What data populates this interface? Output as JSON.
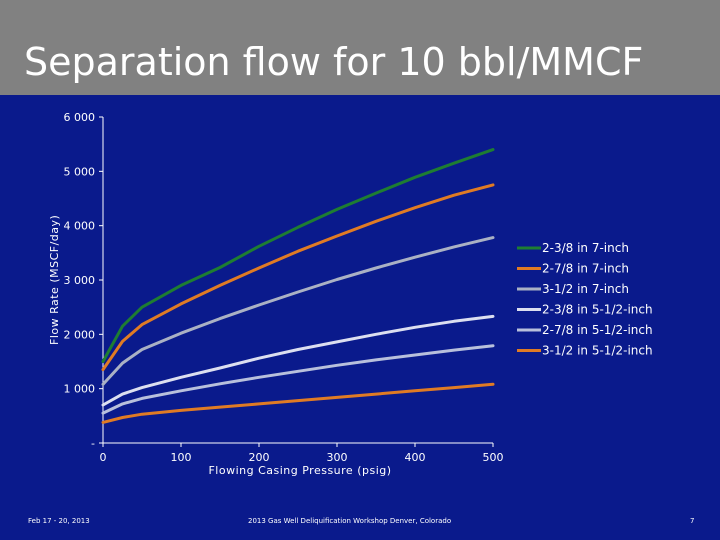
{
  "slide": {
    "title": "Separation flow for 10 bbl/MMCF",
    "footer_left": "Feb 17 - 20, 2013",
    "footer_center": "2013 Gas Well Deliquification Workshop Denver, Colorado",
    "footer_right": "7"
  },
  "colors": {
    "background": "#0a1a8c",
    "title_band": "#818181"
  },
  "chart_data": {
    "type": "line",
    "title": "",
    "xlabel": "Flowing Casing Pressure (psig)",
    "ylabel": "Flow Rate (MSCF/day)",
    "xlim": [
      0,
      500
    ],
    "ylim": [
      0,
      6000
    ],
    "x_ticks": [
      "0",
      "100",
      "200",
      "300",
      "400",
      "500"
    ],
    "y_ticks": [
      "-",
      "1 000",
      "2 000",
      "3 000",
      "4 000",
      "5 000",
      "6 000"
    ],
    "x": [
      0,
      25,
      50,
      100,
      150,
      200,
      250,
      300,
      350,
      400,
      450,
      500
    ],
    "legend_position": "right",
    "series": [
      {
        "name": "2-3/8 in 7-inch",
        "color": "#1e7d32",
        "values": [
          1500,
          2150,
          2500,
          2900,
          3230,
          3620,
          3970,
          4300,
          4600,
          4890,
          5150,
          5400
        ]
      },
      {
        "name": "2-7/8 in 7-inch",
        "color": "#e07b24",
        "values": [
          1350,
          1870,
          2180,
          2560,
          2900,
          3220,
          3530,
          3810,
          4080,
          4330,
          4560,
          4750
        ]
      },
      {
        "name": "3-1/2 in 7-inch",
        "color": "#aab1c4",
        "values": [
          1080,
          1470,
          1720,
          2020,
          2290,
          2540,
          2780,
          3010,
          3220,
          3420,
          3610,
          3780
        ]
      },
      {
        "name": "2-3/8 in 5-1/2-inch",
        "color": "#dcdff0",
        "values": [
          700,
          900,
          1020,
          1210,
          1380,
          1560,
          1720,
          1860,
          2000,
          2130,
          2240,
          2330
        ]
      },
      {
        "name": "2-7/8 in 5-1/2-inch",
        "color": "#b8c0dc",
        "values": [
          550,
          720,
          820,
          960,
          1090,
          1210,
          1320,
          1430,
          1530,
          1620,
          1710,
          1790
        ]
      },
      {
        "name": "3-1/2 in 5-1/2-inch",
        "color": "#e07b24",
        "values": [
          380,
          470,
          530,
          600,
          660,
          720,
          780,
          840,
          900,
          960,
          1020,
          1080
        ]
      }
    ]
  }
}
